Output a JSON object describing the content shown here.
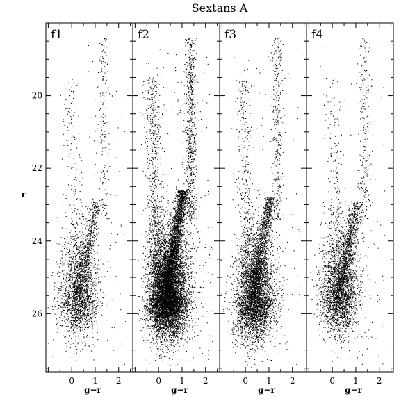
{
  "figure": {
    "title": "Sextans A",
    "ylabel": "r",
    "xlabel": "g−r"
  },
  "chart_data": [
    {
      "type": "scatter",
      "panel_label": "f1",
      "xlabel": "g−r",
      "ylabel": "r",
      "xlim": [
        -1.1,
        2.6
      ],
      "ylim": [
        27.6,
        18.0
      ],
      "y_inverted": true,
      "xticks": [
        0,
        1,
        2
      ],
      "yticks": [
        20,
        22,
        24,
        26
      ],
      "features": {
        "main_sequence_color": 0.05,
        "rgb_tip_r": 22.9,
        "core_r": 25.5,
        "core_color": 0.3,
        "point_count_relative": "low"
      }
    },
    {
      "type": "scatter",
      "panel_label": "f2",
      "xlabel": "g−r",
      "ylabel": "r",
      "xlim": [
        -1.1,
        2.6
      ],
      "ylim": [
        27.6,
        18.0
      ],
      "y_inverted": true,
      "xticks": [
        0,
        1,
        2
      ],
      "yticks": [
        20,
        22,
        24,
        26
      ],
      "features": {
        "main_sequence_color": -0.2,
        "rgb_tip_r": 22.6,
        "core_r": 25.5,
        "core_color": 0.4,
        "point_count_relative": "very high"
      }
    },
    {
      "type": "scatter",
      "panel_label": "f3",
      "xlabel": "g−r",
      "ylabel": "r",
      "xlim": [
        -1.1,
        2.6
      ],
      "ylim": [
        27.6,
        18.0
      ],
      "y_inverted": true,
      "xticks": [
        0,
        1,
        2
      ],
      "yticks": [
        20,
        22,
        24,
        26
      ],
      "features": {
        "main_sequence_color": 0.0,
        "rgb_tip_r": 22.8,
        "core_r": 25.6,
        "core_color": 0.4,
        "point_count_relative": "high"
      }
    },
    {
      "type": "scatter",
      "panel_label": "f4",
      "xlabel": "g−r",
      "ylabel": "r",
      "xlim": [
        -1.1,
        2.6
      ],
      "ylim": [
        27.6,
        18.0
      ],
      "y_inverted": true,
      "xticks": [
        0,
        1,
        2
      ],
      "yticks": [
        20,
        22,
        24,
        26
      ],
      "features": {
        "main_sequence_color": 0.1,
        "rgb_tip_r": 22.9,
        "core_r": 25.4,
        "core_color": 0.3,
        "point_count_relative": "medium"
      }
    }
  ],
  "colors": {
    "points": "#000000",
    "background": "#ffffff",
    "axes": "#000000"
  }
}
